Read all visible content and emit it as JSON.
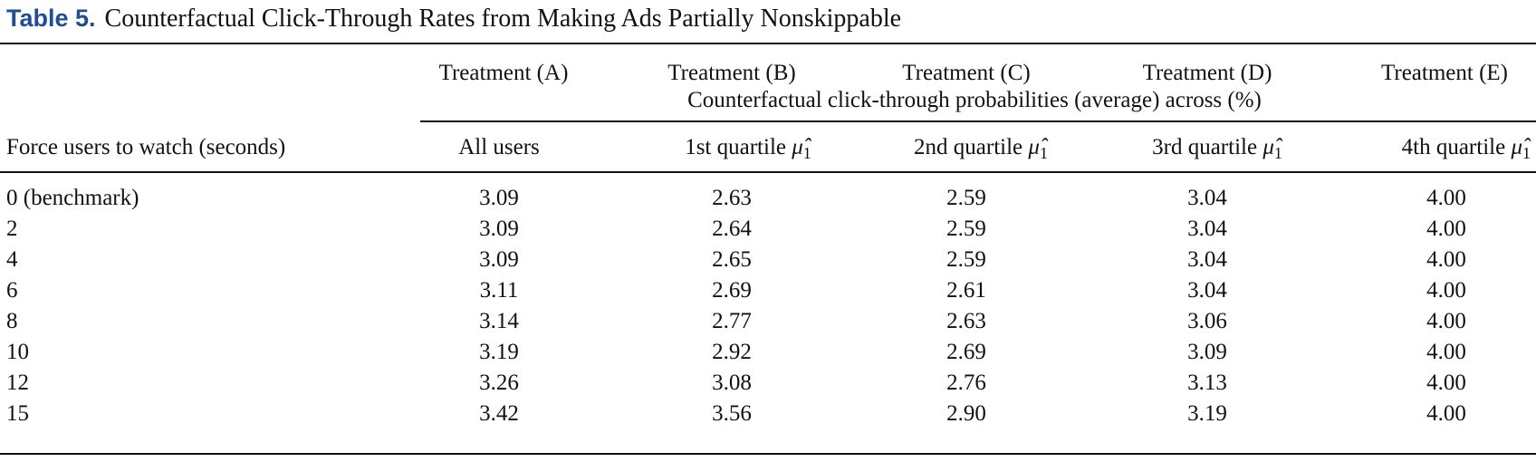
{
  "caption": {
    "label": "Table 5.",
    "title": "Counterfactual Click-Through Rates from Making Ads Partially Nonskippable"
  },
  "header": {
    "treatments": [
      "Treatment (A)",
      "Treatment (B)",
      "Treatment (C)",
      "Treatment (D)",
      "Treatment (E)"
    ],
    "spanner": "Counterfactual click-through probabilities (average) across (%)",
    "row_label": "Force users to watch (seconds)",
    "columns": [
      "All users",
      "1st quartile",
      "2nd quartile",
      "3rd quartile",
      "4th quartile"
    ],
    "mu_symbol": "μ̂",
    "mu_sub": "1"
  },
  "rows": [
    {
      "label": "0 (benchmark)",
      "values": [
        "3.09",
        "2.63",
        "2.59",
        "3.04",
        "4.00"
      ]
    },
    {
      "label": "2",
      "values": [
        "3.09",
        "2.64",
        "2.59",
        "3.04",
        "4.00"
      ]
    },
    {
      "label": "4",
      "values": [
        "3.09",
        "2.65",
        "2.59",
        "3.04",
        "4.00"
      ]
    },
    {
      "label": "6",
      "values": [
        "3.11",
        "2.69",
        "2.61",
        "3.04",
        "4.00"
      ]
    },
    {
      "label": "8",
      "values": [
        "3.14",
        "2.77",
        "2.63",
        "3.06",
        "4.00"
      ]
    },
    {
      "label": "10",
      "values": [
        "3.19",
        "2.92",
        "2.69",
        "3.09",
        "4.00"
      ]
    },
    {
      "label": "12",
      "values": [
        "3.26",
        "3.08",
        "2.76",
        "3.13",
        "4.00"
      ]
    },
    {
      "label": "15",
      "values": [
        "3.42",
        "3.56",
        "2.90",
        "3.19",
        "4.00"
      ]
    }
  ]
}
